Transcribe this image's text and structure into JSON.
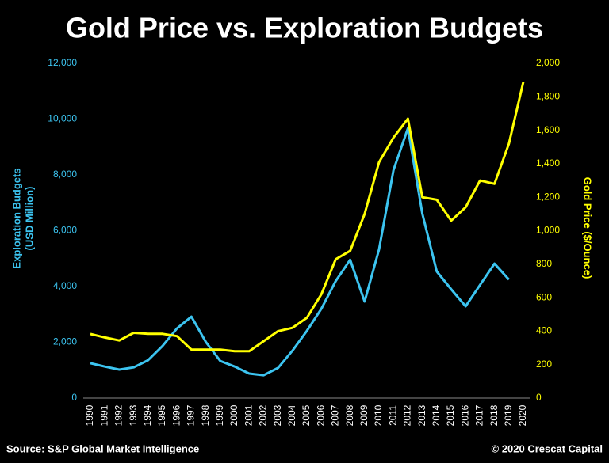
{
  "chart_data": {
    "type": "line",
    "title": "Gold Price vs. Exploration Budgets",
    "ylabel": [
      "Exploration Budgets",
      "(USD Million)"
    ],
    "y2label": "Gold Price ($/Ounce)",
    "source": "Source: S&P Global Market Intelligence",
    "copyright": "© 2020 Crescat Capital",
    "categories": [
      "1990",
      "1991",
      "1992",
      "1993",
      "1994",
      "1995",
      "1996",
      "1997",
      "1998",
      "1999",
      "2000",
      "2001",
      "2002",
      "2003",
      "2004",
      "2005",
      "2006",
      "2007",
      "2008",
      "2009",
      "2010",
      "2011",
      "2012",
      "2013",
      "2014",
      "2015",
      "2016",
      "2017",
      "2018",
      "2019",
      "2020"
    ],
    "series": [
      {
        "name": "Exploration Budgets",
        "color": "#3cc4f0",
        "axis": "y",
        "values": [
          1250,
          1130,
          1020,
          1100,
          1360,
          1870,
          2500,
          2920,
          2010,
          1330,
          1130,
          880,
          820,
          1080,
          1700,
          2410,
          3200,
          4200,
          4960,
          3460,
          5330,
          8170,
          9670,
          6610,
          4540,
          3900,
          3290,
          4060,
          4820,
          4250,
          null
        ]
      },
      {
        "name": "Gold Price",
        "color": "#ffff00",
        "axis": "y2",
        "values": [
          383,
          362,
          344,
          390,
          384,
          384,
          370,
          290,
          290,
          290,
          280,
          280,
          340,
          400,
          420,
          480,
          620,
          830,
          880,
          1100,
          1409,
          1556,
          1669,
          1200,
          1185,
          1060,
          1140,
          1300,
          1280,
          1520,
          1890
        ]
      }
    ],
    "ylim": [
      0,
      12000
    ],
    "yticks": [
      0,
      {
        "value": 2000,
        "label": "2,000"
      },
      {
        "value": 4000,
        "label": "4,000"
      },
      {
        "value": 6000,
        "label": "6,000"
      },
      {
        "value": 8000,
        "label": "8,000"
      },
      {
        "value": 10000,
        "label": "10,000"
      },
      {
        "value": 12000,
        "label": "12,000"
      }
    ],
    "y2lim": [
      0,
      2000
    ],
    "y2ticks": [
      0,
      200,
      400,
      600,
      800,
      {
        "value": 1000,
        "label": "1,000"
      },
      {
        "value": 1200,
        "label": "1,200"
      },
      {
        "value": 1400,
        "label": "1,400"
      },
      {
        "value": 1600,
        "label": "1,600"
      },
      {
        "value": 1800,
        "label": "1,800"
      },
      {
        "value": 2000,
        "label": "2,000"
      }
    ]
  }
}
